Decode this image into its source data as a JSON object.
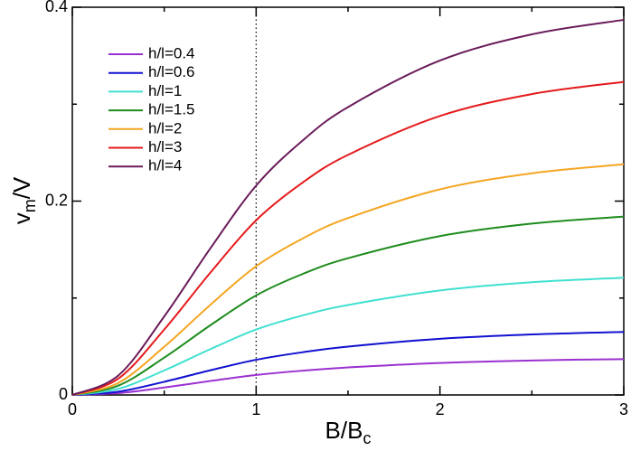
{
  "chart_data": {
    "type": "line",
    "xlabel": {
      "main": "B/B",
      "sub": "c"
    },
    "ylabel": {
      "main": "v",
      "sub": "m",
      "rest": "/V"
    },
    "x": [
      0,
      0.25,
      0.5,
      0.75,
      1,
      1.25,
      1.5,
      2,
      2.5,
      3
    ],
    "series": [
      {
        "name": "h/l=0.4",
        "color": "#9b30d0",
        "values": [
          0,
          0.0019,
          0.0077,
          0.0144,
          0.0206,
          0.025,
          0.0284,
          0.033,
          0.0356,
          0.037
        ]
      },
      {
        "name": "h/l=0.6",
        "color": "#1010d0",
        "values": [
          0,
          0.0034,
          0.0136,
          0.0254,
          0.0363,
          0.044,
          0.0499,
          0.0579,
          0.0625,
          0.065
        ]
      },
      {
        "name": "h/l=1",
        "color": "#40e0d0",
        "values": [
          0,
          0.0063,
          0.0253,
          0.0472,
          0.0675,
          0.0819,
          0.0928,
          0.1078,
          0.1163,
          0.121
        ]
      },
      {
        "name": "h/l=1.5",
        "color": "#1e8c1e",
        "values": [
          0,
          0.0096,
          0.0385,
          0.0718,
          0.1027,
          0.1246,
          0.1411,
          0.1639,
          0.1768,
          0.184
        ]
      },
      {
        "name": "h/l=2",
        "color": "#f5a623",
        "values": [
          0,
          0.0124,
          0.0497,
          0.0928,
          0.1328,
          0.1611,
          0.1825,
          0.2121,
          0.2287,
          0.238
        ]
      },
      {
        "name": "h/l=3",
        "color": "#e41a1c",
        "values": [
          0,
          0.0168,
          0.0675,
          0.126,
          0.1802,
          0.2187,
          0.2477,
          0.2878,
          0.3104,
          0.323
        ]
      },
      {
        "name": "h/l=4",
        "color": "#6a1b5a",
        "values": [
          0,
          0.02,
          0.081,
          0.151,
          0.216,
          0.262,
          0.297,
          0.345,
          0.372,
          0.387
        ]
      }
    ],
    "xlim": [
      0,
      3
    ],
    "xticks": [
      0,
      1,
      2,
      3
    ],
    "xminorticks": [
      0.5,
      1.5,
      2.5
    ],
    "ylim": [
      0,
      0.4
    ],
    "yticks": [
      0,
      0.2,
      0.4
    ],
    "yminorticks": [
      0.1,
      0.3
    ],
    "vline": 1,
    "legend": "upper-left"
  }
}
